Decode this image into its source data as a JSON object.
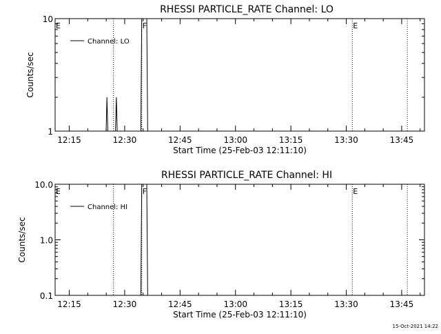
{
  "footer": {
    "timestamp": "15-Oct-2021 14:22"
  },
  "chart_data": [
    {
      "type": "line",
      "title": "RHESSI PARTICLE_RATE Channel: LO",
      "xlabel": "Start Time (25-Feb-03 12:11:10)",
      "ylabel": "Counts/sec",
      "yscale": "log",
      "ylim": [
        1,
        10
      ],
      "y_ticks": [
        "1",
        "10"
      ],
      "x_range_minutes": [
        "12:11:10",
        "13:51:10"
      ],
      "x_ticks": [
        "12:15",
        "12:30",
        "12:45",
        "13:00",
        "13:15",
        "13:30",
        "13:45"
      ],
      "legend": {
        "label": "Channel: LO",
        "position": "top-left"
      },
      "series": [
        {
          "name": "Channel: LO",
          "points": [
            [
              "12:24:58",
              1
            ],
            [
              "12:25:12",
              2
            ],
            [
              "12:25:26",
              1
            ],
            [
              "12:27:31",
              1
            ],
            [
              "12:27:45",
              2
            ],
            [
              "12:27:59",
              1
            ],
            [
              "12:34:23",
              1
            ],
            [
              "12:34:37",
              10
            ],
            [
              "12:35:59",
              10
            ],
            [
              "12:36:13",
              1
            ]
          ]
        }
      ],
      "event_flags": [
        {
          "label": "E",
          "time": "12:11:10"
        },
        {
          "label": "F",
          "time": "12:34:37"
        },
        {
          "label": "E",
          "time": "13:31:38"
        }
      ],
      "dotted_lines": [
        "12:26:58",
        "12:34:37",
        "13:31:38",
        "13:46:32"
      ],
      "grid": false
    },
    {
      "type": "line",
      "title": "RHESSI PARTICLE_RATE Channel: HI",
      "xlabel": "Start Time (25-Feb-03 12:11:10)",
      "ylabel": "Counts/sec",
      "yscale": "log",
      "ylim": [
        0.1,
        10
      ],
      "y_ticks": [
        "0.1",
        "1.0",
        "10.0"
      ],
      "x_range_minutes": [
        "12:11:10",
        "13:51:10"
      ],
      "x_ticks": [
        "12:15",
        "12:30",
        "12:45",
        "13:00",
        "13:15",
        "13:30",
        "13:45"
      ],
      "legend": {
        "label": "Channel: HI",
        "position": "top-left"
      },
      "series": [
        {
          "name": "Channel: HI",
          "points": [
            [
              "12:34:23",
              0.1
            ],
            [
              "12:34:37",
              10
            ],
            [
              "12:35:59",
              10
            ],
            [
              "12:36:13",
              0.1
            ]
          ]
        }
      ],
      "event_flags": [
        {
          "label": "E",
          "time": "12:11:10"
        },
        {
          "label": "F",
          "time": "12:34:37"
        },
        {
          "label": "E",
          "time": "13:31:38"
        }
      ],
      "dotted_lines": [
        "12:26:58",
        "12:34:37",
        "13:31:38",
        "13:46:32"
      ],
      "grid": false
    }
  ]
}
